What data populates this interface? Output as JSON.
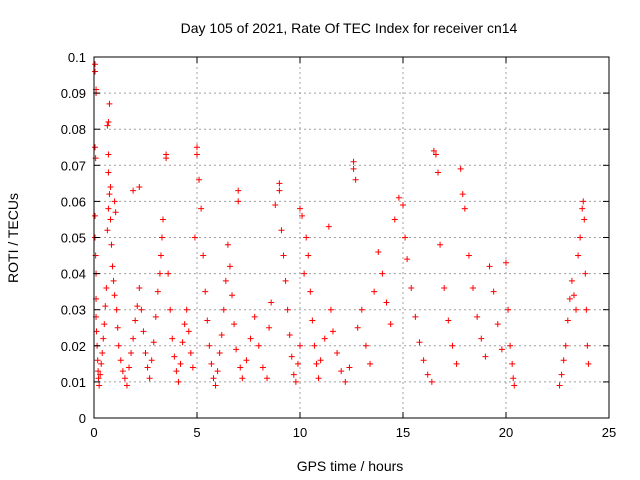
{
  "chart_data": {
    "type": "scatter",
    "title": "Day 105 of 2021, Rate Of TEC Index for receiver cn14",
    "xlabel": "GPS time / hours",
    "ylabel": "ROTI / TECUs",
    "xlim": [
      0,
      25
    ],
    "ylim": [
      0,
      0.1
    ],
    "grid": true,
    "legend": "none",
    "marker": "plus",
    "color": "#ff0000",
    "x_ticks": [
      {
        "value": 0,
        "label": "0"
      },
      {
        "value": 5,
        "label": "5"
      },
      {
        "value": 10,
        "label": "10"
      },
      {
        "value": 15,
        "label": "15"
      },
      {
        "value": 20,
        "label": "20"
      },
      {
        "value": 25,
        "label": "25"
      }
    ],
    "y_ticks": [
      {
        "value": 0,
        "label": "0"
      },
      {
        "value": 0.01,
        "label": "0.01"
      },
      {
        "value": 0.02,
        "label": "0.02"
      },
      {
        "value": 0.03,
        "label": "0.03"
      },
      {
        "value": 0.04,
        "label": "0.04"
      },
      {
        "value": 0.05,
        "label": "0.05"
      },
      {
        "value": 0.06,
        "label": "0.06"
      },
      {
        "value": 0.07,
        "label": "0.07"
      },
      {
        "value": 0.08,
        "label": "0.08"
      },
      {
        "value": 0.09,
        "label": "0.09"
      },
      {
        "value": 0.1,
        "label": "0.1"
      }
    ],
    "points": [
      [
        0.05,
        0.098
      ],
      [
        0.05,
        0.096
      ],
      [
        0.1,
        0.091
      ],
      [
        0.1,
        0.09
      ],
      [
        0.05,
        0.075
      ],
      [
        0.08,
        0.072
      ],
      [
        0.05,
        0.056
      ],
      [
        0.05,
        0.05
      ],
      [
        0.08,
        0.045
      ],
      [
        0.1,
        0.04
      ],
      [
        0.1,
        0.033
      ],
      [
        0.1,
        0.028
      ],
      [
        0.12,
        0.024
      ],
      [
        0.15,
        0.02
      ],
      [
        0.18,
        0.016
      ],
      [
        0.2,
        0.013
      ],
      [
        0.22,
        0.011
      ],
      [
        0.25,
        0.009
      ],
      [
        0.3,
        0.012
      ],
      [
        0.35,
        0.015
      ],
      [
        0.4,
        0.018
      ],
      [
        0.45,
        0.022
      ],
      [
        0.5,
        0.026
      ],
      [
        0.55,
        0.031
      ],
      [
        0.6,
        0.036
      ],
      [
        0.65,
        0.052
      ],
      [
        0.7,
        0.058
      ],
      [
        0.75,
        0.062
      ],
      [
        0.7,
        0.068
      ],
      [
        0.7,
        0.073
      ],
      [
        0.65,
        0.081
      ],
      [
        0.7,
        0.082
      ],
      [
        0.75,
        0.087
      ],
      [
        0.8,
        0.064
      ],
      [
        0.8,
        0.055
      ],
      [
        0.85,
        0.048
      ],
      [
        0.9,
        0.042
      ],
      [
        0.95,
        0.038
      ],
      [
        1.0,
        0.034
      ],
      [
        1.0,
        0.06
      ],
      [
        1.05,
        0.057
      ],
      [
        1.1,
        0.03
      ],
      [
        1.15,
        0.025
      ],
      [
        1.2,
        0.02
      ],
      [
        1.3,
        0.016
      ],
      [
        1.4,
        0.013
      ],
      [
        1.5,
        0.011
      ],
      [
        1.6,
        0.009
      ],
      [
        1.7,
        0.014
      ],
      [
        1.8,
        0.018
      ],
      [
        1.9,
        0.022
      ],
      [
        1.9,
        0.063
      ],
      [
        2.2,
        0.064
      ],
      [
        2.0,
        0.027
      ],
      [
        2.1,
        0.031
      ],
      [
        2.2,
        0.036
      ],
      [
        2.3,
        0.03
      ],
      [
        2.4,
        0.024
      ],
      [
        2.5,
        0.018
      ],
      [
        2.6,
        0.014
      ],
      [
        2.7,
        0.011
      ],
      [
        2.8,
        0.016
      ],
      [
        2.9,
        0.021
      ],
      [
        3.0,
        0.028
      ],
      [
        3.1,
        0.035
      ],
      [
        3.2,
        0.04
      ],
      [
        3.25,
        0.045
      ],
      [
        3.3,
        0.05
      ],
      [
        3.35,
        0.055
      ],
      [
        3.5,
        0.073
      ],
      [
        3.5,
        0.072
      ],
      [
        3.6,
        0.04
      ],
      [
        3.7,
        0.03
      ],
      [
        3.8,
        0.022
      ],
      [
        3.9,
        0.017
      ],
      [
        4.0,
        0.013
      ],
      [
        4.1,
        0.01
      ],
      [
        4.2,
        0.015
      ],
      [
        4.3,
        0.021
      ],
      [
        4.4,
        0.026
      ],
      [
        4.5,
        0.03
      ],
      [
        4.6,
        0.024
      ],
      [
        4.7,
        0.018
      ],
      [
        4.8,
        0.014
      ],
      [
        4.9,
        0.05
      ],
      [
        5.0,
        0.075
      ],
      [
        5.0,
        0.073
      ],
      [
        5.1,
        0.066
      ],
      [
        5.2,
        0.058
      ],
      [
        5.3,
        0.045
      ],
      [
        5.4,
        0.035
      ],
      [
        5.5,
        0.027
      ],
      [
        5.6,
        0.02
      ],
      [
        5.7,
        0.015
      ],
      [
        5.8,
        0.011
      ],
      [
        5.9,
        0.009
      ],
      [
        6.0,
        0.013
      ],
      [
        6.1,
        0.018
      ],
      [
        6.2,
        0.023
      ],
      [
        6.3,
        0.03
      ],
      [
        6.4,
        0.038
      ],
      [
        6.5,
        0.048
      ],
      [
        6.6,
        0.042
      ],
      [
        6.7,
        0.034
      ],
      [
        6.8,
        0.026
      ],
      [
        6.9,
        0.019
      ],
      [
        7.0,
        0.063
      ],
      [
        7.0,
        0.06
      ],
      [
        7.1,
        0.014
      ],
      [
        7.2,
        0.011
      ],
      [
        7.4,
        0.016
      ],
      [
        7.6,
        0.022
      ],
      [
        7.8,
        0.028
      ],
      [
        8.0,
        0.02
      ],
      [
        8.2,
        0.014
      ],
      [
        8.4,
        0.011
      ],
      [
        8.5,
        0.025
      ],
      [
        8.6,
        0.032
      ],
      [
        8.8,
        0.059
      ],
      [
        9.0,
        0.065
      ],
      [
        9.0,
        0.063
      ],
      [
        9.1,
        0.052
      ],
      [
        9.2,
        0.045
      ],
      [
        9.3,
        0.038
      ],
      [
        9.4,
        0.03
      ],
      [
        9.5,
        0.023
      ],
      [
        9.6,
        0.017
      ],
      [
        9.7,
        0.012
      ],
      [
        9.8,
        0.01
      ],
      [
        9.9,
        0.015
      ],
      [
        10.0,
        0.02
      ],
      [
        10.0,
        0.058
      ],
      [
        10.1,
        0.056
      ],
      [
        10.2,
        0.04
      ],
      [
        10.3,
        0.05
      ],
      [
        10.4,
        0.045
      ],
      [
        10.5,
        0.035
      ],
      [
        10.6,
        0.027
      ],
      [
        10.7,
        0.02
      ],
      [
        10.8,
        0.015
      ],
      [
        10.9,
        0.011
      ],
      [
        11.0,
        0.016
      ],
      [
        11.2,
        0.022
      ],
      [
        11.4,
        0.053
      ],
      [
        11.5,
        0.03
      ],
      [
        11.6,
        0.024
      ],
      [
        11.8,
        0.018
      ],
      [
        12.0,
        0.013
      ],
      [
        12.2,
        0.01
      ],
      [
        12.4,
        0.014
      ],
      [
        12.6,
        0.071
      ],
      [
        12.6,
        0.069
      ],
      [
        12.7,
        0.066
      ],
      [
        12.8,
        0.025
      ],
      [
        13.0,
        0.03
      ],
      [
        13.2,
        0.02
      ],
      [
        13.4,
        0.015
      ],
      [
        13.6,
        0.035
      ],
      [
        13.8,
        0.046
      ],
      [
        14.0,
        0.04
      ],
      [
        14.2,
        0.032
      ],
      [
        14.4,
        0.026
      ],
      [
        14.6,
        0.055
      ],
      [
        14.8,
        0.061
      ],
      [
        15.0,
        0.059
      ],
      [
        15.1,
        0.05
      ],
      [
        15.2,
        0.044
      ],
      [
        15.4,
        0.036
      ],
      [
        15.6,
        0.028
      ],
      [
        15.8,
        0.021
      ],
      [
        16.0,
        0.016
      ],
      [
        16.2,
        0.012
      ],
      [
        16.4,
        0.01
      ],
      [
        16.5,
        0.074
      ],
      [
        16.6,
        0.073
      ],
      [
        16.7,
        0.068
      ],
      [
        16.8,
        0.048
      ],
      [
        17.0,
        0.036
      ],
      [
        17.2,
        0.027
      ],
      [
        17.4,
        0.02
      ],
      [
        17.6,
        0.015
      ],
      [
        17.8,
        0.069
      ],
      [
        17.9,
        0.062
      ],
      [
        18.0,
        0.058
      ],
      [
        18.2,
        0.045
      ],
      [
        18.4,
        0.036
      ],
      [
        18.6,
        0.028
      ],
      [
        18.8,
        0.022
      ],
      [
        19.0,
        0.017
      ],
      [
        19.2,
        0.042
      ],
      [
        19.4,
        0.035
      ],
      [
        19.6,
        0.026
      ],
      [
        19.8,
        0.019
      ],
      [
        20.0,
        0.043
      ],
      [
        20.1,
        0.03
      ],
      [
        20.2,
        0.02
      ],
      [
        20.3,
        0.015
      ],
      [
        20.35,
        0.011
      ],
      [
        20.4,
        0.009
      ],
      [
        22.6,
        0.009
      ],
      [
        22.7,
        0.012
      ],
      [
        22.8,
        0.016
      ],
      [
        22.9,
        0.02
      ],
      [
        23.0,
        0.027
      ],
      [
        23.1,
        0.033
      ],
      [
        23.2,
        0.038
      ],
      [
        23.3,
        0.034
      ],
      [
        23.4,
        0.03
      ],
      [
        23.5,
        0.045
      ],
      [
        23.6,
        0.05
      ],
      [
        23.7,
        0.058
      ],
      [
        23.75,
        0.06
      ],
      [
        23.8,
        0.055
      ],
      [
        23.85,
        0.04
      ],
      [
        23.9,
        0.03
      ],
      [
        23.95,
        0.02
      ],
      [
        24.0,
        0.015
      ]
    ]
  }
}
